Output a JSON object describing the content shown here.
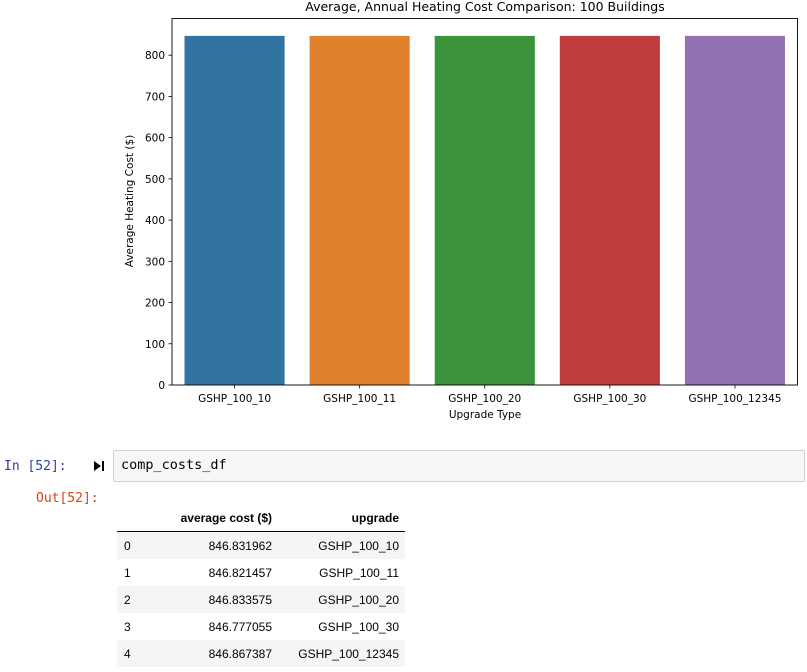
{
  "chart_data": {
    "type": "bar",
    "title": "Average, Annual Heating Cost Comparison: 100 Buildings",
    "xlabel": "Upgrade Type",
    "ylabel": "Average Heating Cost ($)",
    "categories": [
      "GSHP_100_10",
      "GSHP_100_11",
      "GSHP_100_20",
      "GSHP_100_30",
      "GSHP_100_12345"
    ],
    "values": [
      846.831962,
      846.821457,
      846.833575,
      846.777055,
      846.867387
    ],
    "colors": [
      "#3274a1",
      "#e1812c",
      "#3a923a",
      "#c03d3e",
      "#9372b2"
    ],
    "yticks": [
      0,
      100,
      200,
      300,
      400,
      500,
      600,
      700,
      800
    ],
    "ylim": [
      0,
      889
    ],
    "grid": false,
    "legend": "none"
  },
  "notebook": {
    "in_prompt": "In [52]:",
    "code": "comp_costs_df",
    "out_prompt": "Out[52]:",
    "run_icon": "run-cell-icon"
  },
  "dataframe": {
    "columns": [
      "",
      "average cost ($)",
      "upgrade"
    ],
    "rows": [
      [
        "0",
        "846.831962",
        "GSHP_100_10"
      ],
      [
        "1",
        "846.821457",
        "GSHP_100_11"
      ],
      [
        "2",
        "846.833575",
        "GSHP_100_20"
      ],
      [
        "3",
        "846.777055",
        "GSHP_100_30"
      ],
      [
        "4",
        "846.867387",
        "GSHP_100_12345"
      ]
    ]
  }
}
